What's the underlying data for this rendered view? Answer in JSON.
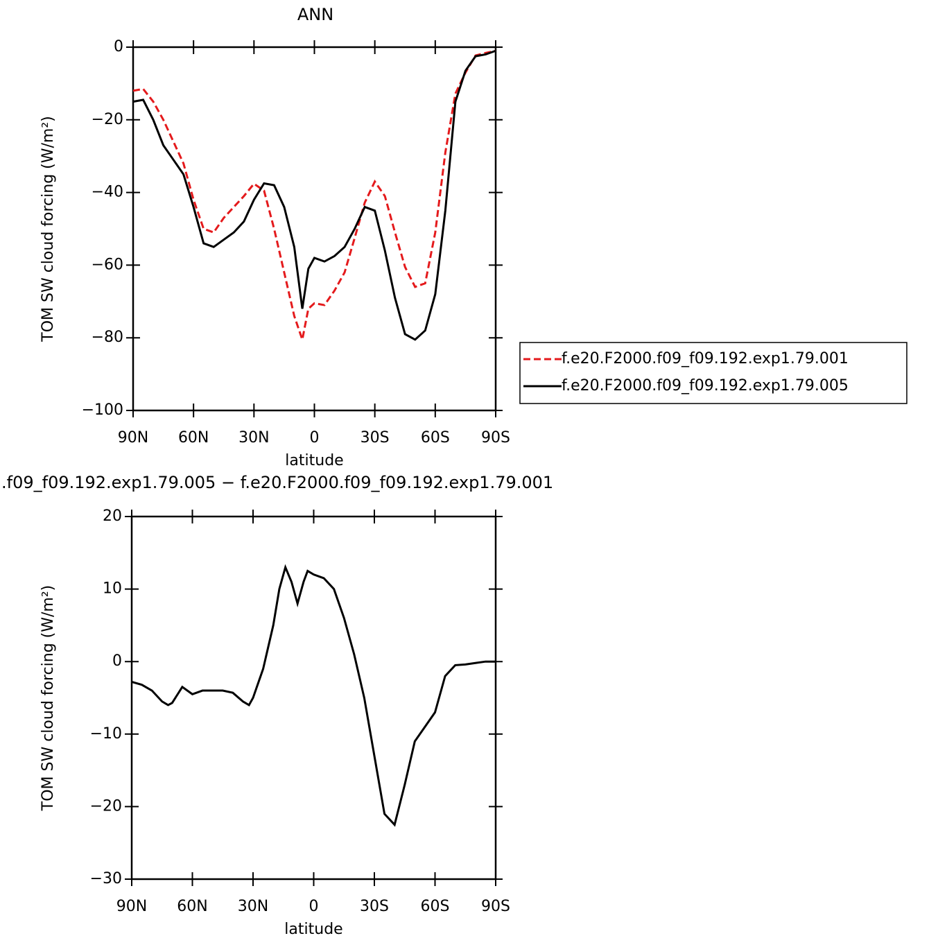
{
  "chart_data": [
    {
      "type": "line",
      "title": "ANN",
      "xlabel": "latitude",
      "ylabel": "TOM SW cloud forcing (W/m²)",
      "x": [
        90,
        85,
        80,
        75,
        70,
        65,
        60,
        55,
        50,
        45,
        40,
        35,
        30,
        25,
        20,
        15,
        10,
        6,
        3,
        0,
        -5,
        -10,
        -15,
        -20,
        -25,
        -30,
        -35,
        -40,
        -45,
        -50,
        -55,
        -60,
        -65,
        -70,
        -75,
        -80,
        -85,
        -90
      ],
      "series": [
        {
          "name": "f.e20.F2000.f09_f09.192.exp1.79.001",
          "color": "#e41a1c",
          "style": "dashed",
          "values": [
            -12,
            -11.5,
            -15,
            -20,
            -26,
            -32,
            -42,
            -50,
            -51,
            -47,
            -44,
            -41,
            -37.6,
            -39.5,
            -50,
            -62,
            -74,
            -80.5,
            -72,
            -70.5,
            -71,
            -67,
            -62,
            -52.5,
            -42.8,
            -37,
            -41,
            -51,
            -60.5,
            -66,
            -65,
            -51,
            -29,
            -12.8,
            -7,
            -2.3,
            -1.6,
            -1
          ]
        },
        {
          "name": "f.e20.F2000.f09_f09.192.exp1.79.005",
          "color": "#000000",
          "style": "solid",
          "values": [
            -15,
            -14.5,
            -20,
            -27,
            -31,
            -35,
            -44,
            -54,
            -55,
            -53,
            -51,
            -48,
            -42,
            -37.5,
            -38,
            -44,
            -55,
            -72,
            -61,
            -58,
            -59,
            -57.5,
            -55,
            -50,
            -44,
            -45,
            -56,
            -69,
            -79,
            -80.5,
            -78,
            -68,
            -45,
            -15,
            -6.5,
            -2.5,
            -2,
            -1
          ]
        }
      ],
      "xlim": [
        90,
        -90
      ],
      "xticks": [
        {
          "value": 90,
          "label": "90N"
        },
        {
          "value": 60,
          "label": "60N"
        },
        {
          "value": 30,
          "label": "30N"
        },
        0,
        {
          "value": -30,
          "label": "30S"
        },
        {
          "value": -60,
          "label": "60S"
        },
        {
          "value": -90,
          "label": "90S"
        }
      ],
      "ylim": [
        -100,
        0
      ],
      "yticks": [
        {
          "value": -100,
          "label": "−100"
        },
        {
          "value": -80,
          "label": "−80"
        },
        {
          "value": -60,
          "label": "−60"
        },
        {
          "value": -40,
          "label": "−40"
        },
        {
          "value": -20,
          "label": "−20"
        },
        0
      ],
      "legend": "right"
    },
    {
      "type": "line",
      "title": ".f09_f09.192.exp1.79.005 − f.e20.F2000.f09_f09.192.exp1.79.001",
      "xlabel": "latitude",
      "ylabel": "TOM SW cloud forcing (W/m²)",
      "x": [
        90,
        85,
        80,
        75,
        72,
        70,
        65,
        60,
        55,
        50,
        45,
        40,
        35,
        32,
        30,
        25,
        20,
        17,
        14,
        11,
        8,
        5,
        3,
        0,
        -5,
        -10,
        -15,
        -20,
        -25,
        -30,
        -35,
        -40,
        -45,
        -50,
        -55,
        -60,
        -65,
        -70,
        -75,
        -80,
        -85,
        -90
      ],
      "series": [
        {
          "color": "#000000",
          "style": "solid",
          "values": [
            -2.8,
            -3.2,
            -4,
            -5.5,
            -6,
            -5.7,
            -3.5,
            -4.5,
            -4,
            -4,
            -4,
            -4.3,
            -5.5,
            -6,
            -5,
            -1,
            5,
            10,
            13,
            11,
            8,
            11,
            12.5,
            12,
            11.5,
            10,
            6,
            1,
            -5,
            -13,
            -21,
            -22.5,
            -17,
            -11,
            -9,
            -7,
            -2,
            -0.5,
            -0.4,
            -0.2,
            0,
            0
          ]
        }
      ],
      "xlim": [
        90,
        -90
      ],
      "xticks": [
        {
          "value": 90,
          "label": "90N"
        },
        {
          "value": 60,
          "label": "60N"
        },
        {
          "value": 30,
          "label": "30N"
        },
        0,
        {
          "value": -30,
          "label": "30S"
        },
        {
          "value": -60,
          "label": "60S"
        },
        {
          "value": -90,
          "label": "90S"
        }
      ],
      "ylim": [
        -30,
        20
      ],
      "yticks": [
        {
          "value": -30,
          "label": "−30"
        },
        {
          "value": -20,
          "label": "−20"
        },
        {
          "value": -10,
          "label": "−10"
        },
        0,
        10,
        20
      ]
    }
  ]
}
